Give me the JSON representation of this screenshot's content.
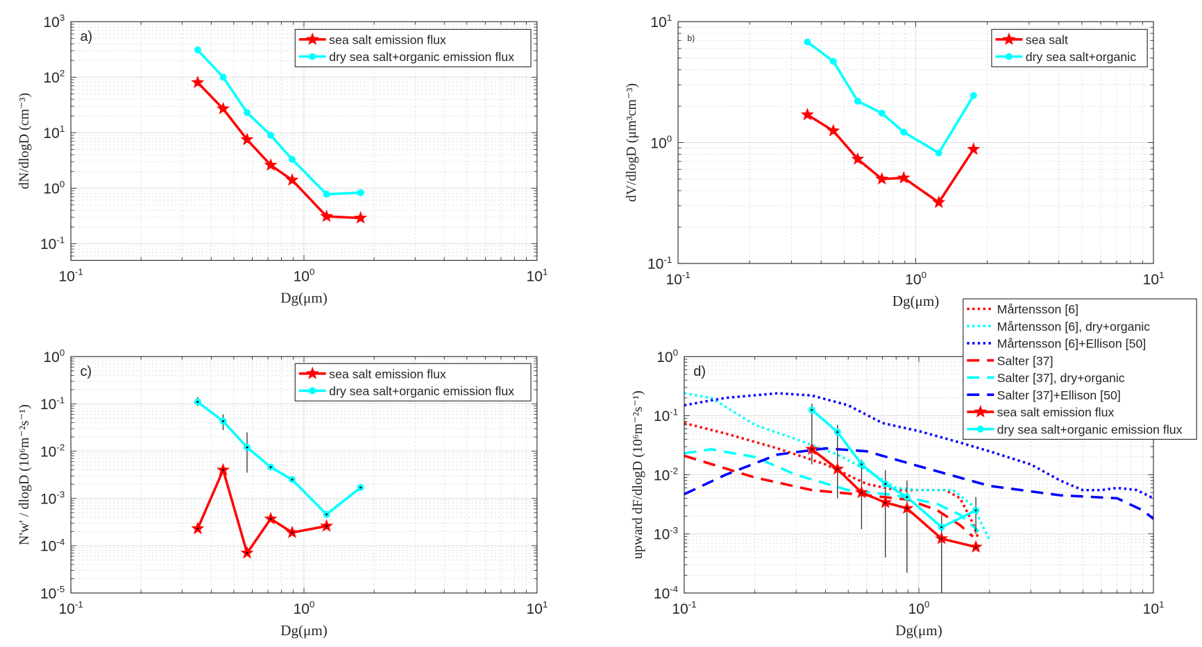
{
  "colors": {
    "sea_salt": "#ff0000",
    "organic": "#00ffff",
    "blue": "#0000ff",
    "grid": "#d9d9d9",
    "axis": "#262626"
  },
  "chart_data": [
    {
      "type": "line",
      "panel_label": "a)",
      "xlabel": "Dg(μm)",
      "ylabel": "dN/dlogD (cm⁻³)",
      "xscale": "log",
      "yscale": "log",
      "xlim": [
        0.1,
        10
      ],
      "ylim": [
        0.05,
        1000
      ],
      "xticks": [
        {
          "v": 0.1,
          "base": "10",
          "exp": "-1"
        },
        {
          "v": 1,
          "base": "10",
          "exp": "0"
        },
        {
          "v": 10,
          "base": "10",
          "exp": "1"
        }
      ],
      "yticks": [
        {
          "v": 0.1,
          "base": "10",
          "exp": "-1"
        },
        {
          "v": 1,
          "base": "10",
          "exp": "0"
        },
        {
          "v": 10,
          "base": "10",
          "exp": "1"
        },
        {
          "v": 100,
          "base": "10",
          "exp": "2"
        },
        {
          "v": 1000,
          "base": "10",
          "exp": "3"
        }
      ],
      "legend_position": "top-right",
      "series": [
        {
          "name": "sea salt emission flux",
          "color": "#ff0000",
          "marker": "star",
          "style": "solid",
          "x": [
            0.35,
            0.45,
            0.57,
            0.72,
            0.89,
            1.25,
            1.75
          ],
          "y": [
            80,
            27,
            7.5,
            2.6,
            1.4,
            0.31,
            0.29
          ]
        },
        {
          "name": "dry sea salt+organic emission flux",
          "color": "#00ffff",
          "marker": "circle",
          "style": "solid",
          "x": [
            0.35,
            0.45,
            0.57,
            0.72,
            0.89,
            1.25,
            1.75
          ],
          "y": [
            310,
            100,
            23,
            9,
            3.3,
            0.78,
            0.83
          ]
        }
      ]
    },
    {
      "type": "line",
      "panel_label": "b)",
      "xlabel": "Dg(μm)",
      "ylabel": "dV/dlogD (μm³cm⁻³)",
      "xscale": "log",
      "yscale": "log",
      "xlim": [
        0.1,
        10
      ],
      "ylim": [
        0.1,
        10
      ],
      "xticks": [
        {
          "v": 0.1,
          "base": "10",
          "exp": "-1"
        },
        {
          "v": 1,
          "base": "10",
          "exp": "0"
        },
        {
          "v": 10,
          "base": "10",
          "exp": "1"
        }
      ],
      "yticks": [
        {
          "v": 0.1,
          "base": "10",
          "exp": "-1"
        },
        {
          "v": 1,
          "base": "10",
          "exp": "0"
        },
        {
          "v": 10,
          "base": "10",
          "exp": "1"
        }
      ],
      "legend_position": "top-right",
      "series": [
        {
          "name": "sea salt",
          "color": "#ff0000",
          "marker": "star",
          "style": "solid",
          "x": [
            0.35,
            0.45,
            0.57,
            0.72,
            0.89,
            1.25,
            1.75
          ],
          "y": [
            1.7,
            1.25,
            0.73,
            0.5,
            0.51,
            0.32,
            0.88
          ]
        },
        {
          "name": "dry sea salt+organic",
          "color": "#00ffff",
          "marker": "circle",
          "style": "solid",
          "x": [
            0.35,
            0.45,
            0.57,
            0.72,
            0.89,
            1.25,
            1.75
          ],
          "y": [
            6.8,
            4.7,
            2.2,
            1.75,
            1.22,
            0.82,
            2.45
          ]
        }
      ]
    },
    {
      "type": "line",
      "panel_label": "c)",
      "xlabel": "Dg(μm)",
      "ylabel": "N'w' / dlogD (10⁶m⁻²s⁻¹)",
      "xscale": "log",
      "yscale": "log",
      "xlim": [
        0.1,
        10
      ],
      "ylim": [
        1e-05,
        1
      ],
      "xticks": [
        {
          "v": 0.1,
          "base": "10",
          "exp": "-1"
        },
        {
          "v": 1,
          "base": "10",
          "exp": "0"
        },
        {
          "v": 10,
          "base": "10",
          "exp": "1"
        }
      ],
      "yticks": [
        {
          "v": 1e-05,
          "base": "10",
          "exp": "-5"
        },
        {
          "v": 0.0001,
          "base": "10",
          "exp": "-4"
        },
        {
          "v": 0.001,
          "base": "10",
          "exp": "-3"
        },
        {
          "v": 0.01,
          "base": "10",
          "exp": "-2"
        },
        {
          "v": 0.1,
          "base": "10",
          "exp": "-1"
        },
        {
          "v": 1,
          "base": "10",
          "exp": "0"
        }
      ],
      "legend_position": "top-right",
      "series": [
        {
          "name": "sea salt emission flux",
          "color": "#ff0000",
          "marker": "star",
          "style": "solid",
          "x": [
            0.35,
            0.45,
            0.57,
            0.72,
            0.89,
            1.25
          ],
          "y": [
            0.00023,
            0.004,
            7e-05,
            0.00037,
            0.00019,
            0.00026
          ]
        },
        {
          "name": "dry sea salt+organic emission flux",
          "color": "#00ffff",
          "marker": "circle",
          "style": "solid",
          "x": [
            0.35,
            0.45,
            0.57,
            0.72,
            0.89,
            1.25,
            1.75
          ],
          "y": [
            0.11,
            0.043,
            0.012,
            0.0046,
            0.0025,
            0.00046,
            0.0017
          ]
        }
      ],
      "error_bars": [
        {
          "x": 0.35,
          "low": 0.09,
          "high": 0.14
        },
        {
          "x": 0.45,
          "low": 0.028,
          "high": 0.06
        },
        {
          "x": 0.57,
          "low": 0.0035,
          "high": 0.025
        }
      ]
    },
    {
      "type": "line",
      "panel_label": "d)",
      "xlabel": "Dg(μm)",
      "ylabel": "upward dF/dlogD (10⁶m⁻²s⁻¹)",
      "xscale": "log",
      "yscale": "log",
      "xlim": [
        0.1,
        10
      ],
      "ylim": [
        0.0001,
        1
      ],
      "xticks": [
        {
          "v": 0.1,
          "base": "10",
          "exp": "-1"
        },
        {
          "v": 1,
          "base": "10",
          "exp": "0"
        },
        {
          "v": 10,
          "base": "10",
          "exp": "1"
        }
      ],
      "yticks": [
        {
          "v": 0.0001,
          "base": "10",
          "exp": "-4"
        },
        {
          "v": 0.001,
          "base": "10",
          "exp": "-3"
        },
        {
          "v": 0.01,
          "base": "10",
          "exp": "-2"
        },
        {
          "v": 0.1,
          "base": "10",
          "exp": "-1"
        },
        {
          "v": 1,
          "base": "10",
          "exp": "0"
        }
      ],
      "legend_position": "outside top-right",
      "series": [
        {
          "name": "Mårtensson [6]",
          "color": "#ff0000",
          "marker": "none",
          "style": "dotted",
          "x": [
            0.1,
            0.15,
            0.25,
            0.4,
            0.6,
            0.8,
            1.0,
            1.3,
            1.5,
            1.7,
            1.8
          ],
          "y": [
            0.075,
            0.05,
            0.028,
            0.015,
            0.007,
            0.0055,
            0.0055,
            0.0055,
            0.004,
            0.0015,
            0.0008
          ]
        },
        {
          "name": "Mårtensson [6], dry+organic",
          "color": "#00ffff",
          "marker": "none",
          "style": "dotted",
          "x": [
            0.1,
            0.13,
            0.2,
            0.3,
            0.45,
            0.6,
            0.8,
            1.0,
            1.4,
            1.7,
            1.9,
            2.0
          ],
          "y": [
            0.24,
            0.2,
            0.07,
            0.04,
            0.022,
            0.012,
            0.006,
            0.0055,
            0.0055,
            0.003,
            0.0012,
            0.0008
          ]
        },
        {
          "name": "Mårtensson [6]+Ellison [50]",
          "color": "#0000ff",
          "marker": "none",
          "style": "dotted",
          "x": [
            0.1,
            0.15,
            0.25,
            0.35,
            0.5,
            0.7,
            1.0,
            1.5,
            2,
            3,
            4,
            5,
            6,
            7,
            8.5,
            10
          ],
          "y": [
            0.15,
            0.2,
            0.24,
            0.22,
            0.15,
            0.075,
            0.055,
            0.035,
            0.025,
            0.015,
            0.008,
            0.0055,
            0.0055,
            0.006,
            0.0055,
            0.004
          ]
        },
        {
          "name": "Salter [37]",
          "color": "#ff0000",
          "marker": "none",
          "style": "dashed",
          "x": [
            0.1,
            0.2,
            0.35,
            0.6,
            0.9,
            1.2,
            1.5,
            1.7
          ],
          "y": [
            0.021,
            0.009,
            0.0055,
            0.0045,
            0.0038,
            0.0025,
            0.0014,
            0.0009
          ]
        },
        {
          "name": "Salter [37], dry+organic",
          "color": "#00ffff",
          "marker": "none",
          "style": "dashed",
          "x": [
            0.1,
            0.13,
            0.2,
            0.3,
            0.5,
            0.8,
            1.2,
            1.5,
            1.8
          ],
          "y": [
            0.023,
            0.027,
            0.02,
            0.01,
            0.0055,
            0.0045,
            0.0032,
            0.0021,
            0.0011
          ]
        },
        {
          "name": "Salter [37]+Ellison [50]",
          "color": "#0000ff",
          "marker": "none",
          "style": "dashed",
          "x": [
            0.1,
            0.15,
            0.25,
            0.4,
            0.6,
            1.0,
            2,
            4,
            7,
            9,
            10
          ],
          "y": [
            0.0047,
            0.01,
            0.022,
            0.028,
            0.025,
            0.014,
            0.0065,
            0.0045,
            0.004,
            0.0025,
            0.0018
          ]
        },
        {
          "name": "sea salt emission flux",
          "color": "#ff0000",
          "marker": "star",
          "style": "solid",
          "x": [
            0.35,
            0.45,
            0.57,
            0.72,
            0.89,
            1.25,
            1.75
          ],
          "y": [
            0.027,
            0.0125,
            0.005,
            0.0034,
            0.0027,
            0.00083,
            0.0006
          ]
        },
        {
          "name": "dry sea salt+organic emission flux",
          "color": "#00ffff",
          "marker": "circle",
          "style": "solid",
          "x": [
            0.35,
            0.45,
            0.57,
            0.72,
            0.89,
            1.25,
            1.75
          ],
          "y": [
            0.125,
            0.053,
            0.015,
            0.007,
            0.0042,
            0.0013,
            0.0025
          ]
        }
      ],
      "error_bars": [
        {
          "x": 0.35,
          "low": 0.015,
          "high": 0.16
        },
        {
          "x": 0.45,
          "low": 0.004,
          "high": 0.07
        },
        {
          "x": 0.57,
          "low": 0.0012,
          "high": 0.018
        },
        {
          "x": 0.72,
          "low": 0.0004,
          "high": 0.012
        },
        {
          "x": 0.89,
          "low": 0.00022,
          "high": 0.008
        },
        {
          "x": 1.25,
          "low": 0.0001,
          "high": 0.0021
        },
        {
          "x": 1.75,
          "low": 0.001,
          "high": 0.0042
        }
      ]
    }
  ]
}
